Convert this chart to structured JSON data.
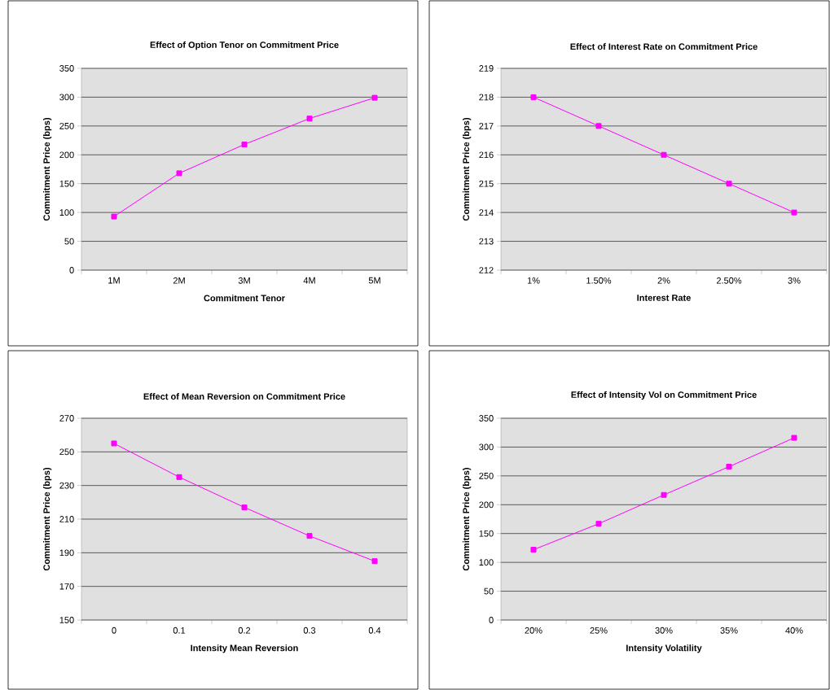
{
  "chart_data": [
    {
      "type": "line",
      "title": "Effect of Option Tenor on Commitment Price",
      "xlabel": "Commitment Tenor",
      "ylabel": "Commitment Price (bps)",
      "categories": [
        "1M",
        "2M",
        "3M",
        "4M",
        "5M"
      ],
      "series": [
        {
          "color": "#ff00ff",
          "values": [
            93,
            168,
            218,
            263,
            299
          ]
        }
      ],
      "ylim": [
        0,
        350
      ],
      "yticks": [
        0,
        50,
        100,
        150,
        200,
        250,
        300,
        350
      ],
      "grid": "y",
      "marker": "square"
    },
    {
      "type": "line",
      "title": "Effect of Interest Rate on Commitment Price",
      "xlabel": "Interest Rate",
      "ylabel": "Commitment Price (bps)",
      "categories": [
        "1%",
        "1.50%",
        "2%",
        "2.50%",
        "3%"
      ],
      "series": [
        {
          "color": "#ff00ff",
          "values": [
            218,
            217,
            216,
            215,
            214
          ]
        }
      ],
      "ylim": [
        212,
        219
      ],
      "yticks": [
        212,
        213,
        214,
        215,
        216,
        217,
        218,
        219
      ],
      "grid": "y",
      "marker": "square"
    },
    {
      "type": "line",
      "title": "Effect of Mean Reversion on Commitment Price",
      "xlabel": "Intensity Mean Reversion",
      "ylabel": "Commitment Price (bps)",
      "categories": [
        "0",
        "0.1",
        "0.2",
        "0.3",
        "0.4"
      ],
      "series": [
        {
          "color": "#ff00ff",
          "values": [
            255,
            235,
            217,
            200,
            185
          ]
        }
      ],
      "ylim": [
        150,
        270
      ],
      "yticks": [
        150,
        170,
        190,
        210,
        230,
        250,
        270
      ],
      "grid": "y",
      "marker": "square"
    },
    {
      "type": "line",
      "title": "Effect of Intensity Vol on Commitment Price",
      "xlabel": "Intensity Volatility",
      "ylabel": "Commitment Price (bps)",
      "categories": [
        "20%",
        "25%",
        "30%",
        "35%",
        "40%"
      ],
      "series": [
        {
          "color": "#ff00ff",
          "values": [
            122,
            167,
            217,
            266,
            316
          ]
        }
      ],
      "ylim": [
        0,
        350
      ],
      "yticks": [
        0,
        50,
        100,
        150,
        200,
        250,
        300,
        350
      ],
      "grid": "y",
      "marker": "square"
    }
  ]
}
